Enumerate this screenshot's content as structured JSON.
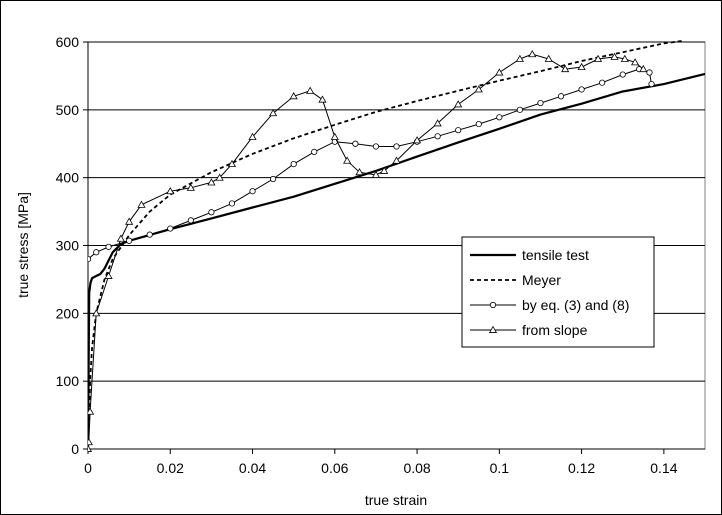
{
  "chart_data": {
    "type": "line",
    "title": "",
    "xlabel": "true strain",
    "ylabel": "true stress [MPa]",
    "xlim": [
      0,
      0.15
    ],
    "ylim": [
      0,
      600
    ],
    "x_ticks": [
      "0",
      "0.02",
      "0.04",
      "0.06",
      "0.08",
      "0.1",
      "0.12",
      "0.14"
    ],
    "y_ticks": [
      "0",
      "100",
      "200",
      "300",
      "400",
      "500",
      "600"
    ],
    "grid": "horizontal",
    "legend_position": "right",
    "series": [
      {
        "name": "tensile test",
        "style": "solid-thick",
        "marker": "none",
        "points": [
          [
            0,
            0
          ],
          [
            0.0003,
            230
          ],
          [
            0.0006,
            245
          ],
          [
            0.001,
            252
          ],
          [
            0.002,
            255
          ],
          [
            0.003,
            258
          ],
          [
            0.004,
            266
          ],
          [
            0.006,
            290
          ],
          [
            0.008,
            302
          ],
          [
            0.01,
            307
          ],
          [
            0.02,
            324
          ],
          [
            0.03,
            340
          ],
          [
            0.04,
            356
          ],
          [
            0.05,
            372
          ],
          [
            0.06,
            391
          ],
          [
            0.07,
            410
          ],
          [
            0.08,
            431
          ],
          [
            0.09,
            452
          ],
          [
            0.1,
            472
          ],
          [
            0.11,
            493
          ],
          [
            0.12,
            509
          ],
          [
            0.13,
            527
          ],
          [
            0.14,
            538
          ],
          [
            0.15,
            553
          ]
        ]
      },
      {
        "name": "Meyer",
        "style": "dashed",
        "marker": "none",
        "points": [
          [
            0,
            0
          ],
          [
            0.0005,
            100
          ],
          [
            0.001,
            150
          ],
          [
            0.002,
            200
          ],
          [
            0.004,
            250
          ],
          [
            0.006,
            280
          ],
          [
            0.01,
            315
          ],
          [
            0.015,
            350
          ],
          [
            0.02,
            375
          ],
          [
            0.03,
            408
          ],
          [
            0.04,
            435
          ],
          [
            0.05,
            458
          ],
          [
            0.06,
            478
          ],
          [
            0.07,
            497
          ],
          [
            0.08,
            513
          ],
          [
            0.09,
            528
          ],
          [
            0.1,
            543
          ],
          [
            0.11,
            557
          ],
          [
            0.12,
            572
          ],
          [
            0.13,
            585
          ],
          [
            0.14,
            598
          ],
          [
            0.145,
            602
          ]
        ]
      },
      {
        "name": "by eq. (3) and (8)",
        "style": "solid-thin",
        "marker": "circle",
        "points": [
          [
            0,
            280
          ],
          [
            0.002,
            290
          ],
          [
            0.005,
            298
          ],
          [
            0.01,
            307
          ],
          [
            0.015,
            316
          ],
          [
            0.02,
            325
          ],
          [
            0.025,
            337
          ],
          [
            0.03,
            349
          ],
          [
            0.035,
            362
          ],
          [
            0.04,
            380
          ],
          [
            0.045,
            398
          ],
          [
            0.05,
            420
          ],
          [
            0.055,
            438
          ],
          [
            0.06,
            453
          ],
          [
            0.065,
            450
          ],
          [
            0.07,
            446
          ],
          [
            0.075,
            446
          ],
          [
            0.08,
            453
          ],
          [
            0.085,
            461
          ],
          [
            0.09,
            470
          ],
          [
            0.095,
            479
          ],
          [
            0.1,
            489
          ],
          [
            0.105,
            500
          ],
          [
            0.11,
            510
          ],
          [
            0.115,
            520
          ],
          [
            0.12,
            530
          ],
          [
            0.125,
            540
          ],
          [
            0.13,
            552
          ],
          [
            0.134,
            560
          ],
          [
            0.1365,
            555
          ],
          [
            0.137,
            538
          ]
        ]
      },
      {
        "name": "from slope",
        "style": "solid-thin",
        "marker": "triangle",
        "points": [
          [
            0,
            0
          ],
          [
            0.0002,
            10
          ],
          [
            0.0005,
            55
          ],
          [
            0.002,
            200
          ],
          [
            0.005,
            255
          ],
          [
            0.008,
            310
          ],
          [
            0.01,
            335
          ],
          [
            0.013,
            360
          ],
          [
            0.02,
            380
          ],
          [
            0.025,
            385
          ],
          [
            0.03,
            393
          ],
          [
            0.032,
            400
          ],
          [
            0.035,
            420
          ],
          [
            0.04,
            460
          ],
          [
            0.045,
            495
          ],
          [
            0.05,
            520
          ],
          [
            0.054,
            528
          ],
          [
            0.057,
            515
          ],
          [
            0.06,
            460
          ],
          [
            0.063,
            425
          ],
          [
            0.066,
            408
          ],
          [
            0.07,
            404
          ],
          [
            0.072,
            410
          ],
          [
            0.075,
            425
          ],
          [
            0.08,
            455
          ],
          [
            0.085,
            480
          ],
          [
            0.09,
            508
          ],
          [
            0.095,
            530
          ],
          [
            0.1,
            555
          ],
          [
            0.105,
            575
          ],
          [
            0.108,
            582
          ],
          [
            0.112,
            575
          ],
          [
            0.116,
            560
          ],
          [
            0.12,
            563
          ],
          [
            0.124,
            575
          ],
          [
            0.128,
            578
          ],
          [
            0.1305,
            575
          ],
          [
            0.133,
            570
          ],
          [
            0.135,
            560
          ]
        ]
      }
    ]
  }
}
